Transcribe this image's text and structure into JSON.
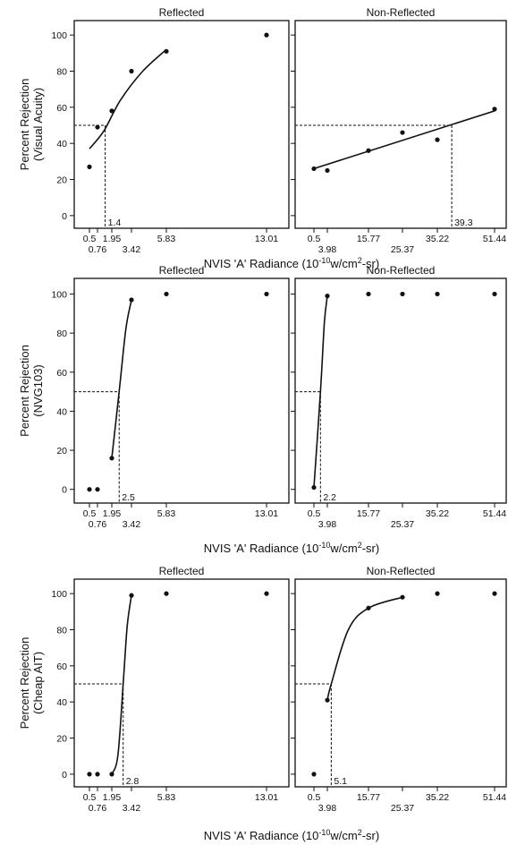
{
  "chart_data": [
    {
      "type": "scatter",
      "title": "Reflected",
      "ylabel": "Percent Rejection\n(Visual Acuity)",
      "xlabel": "NVIS 'A' Radiance (10-10w/cm2-sr)",
      "xticks": [
        {
          "label": "0.5",
          "x": 0.5
        },
        {
          "label": "0.76",
          "x": 0.76
        },
        {
          "label": "1.95",
          "x": 1.95
        },
        {
          "label": "3.42",
          "x": 3.42
        },
        {
          "label": "5.83",
          "x": 5.83
        },
        {
          "label": "13.01",
          "x": 13.01
        }
      ],
      "yticks": [
        0,
        20,
        40,
        60,
        80,
        100
      ],
      "ylim": [
        -7,
        108
      ],
      "points": [
        {
          "x": 0.5,
          "y": 27
        },
        {
          "x": 0.76,
          "y": 49
        },
        {
          "x": 1.95,
          "y": 58
        },
        {
          "x": 3.42,
          "y": 80
        },
        {
          "x": 5.83,
          "y": 91
        },
        {
          "x": 13.01,
          "y": 100
        }
      ],
      "curve": [
        [
          0.5,
          37
        ],
        [
          1.3,
          47
        ],
        [
          2.6,
          64
        ],
        [
          4.2,
          80
        ],
        [
          5.83,
          92
        ]
      ],
      "threshold": {
        "label": "1.4",
        "x": 1.4,
        "y": 50
      }
    },
    {
      "type": "scatter",
      "title": "Non-Reflected",
      "xticks": [
        {
          "label": "0.5",
          "x": 0.5
        },
        {
          "label": "3.98",
          "x": 3.98
        },
        {
          "label": "15.77",
          "x": 15.77
        },
        {
          "label": "25.37",
          "x": 25.37
        },
        {
          "label": "35.22",
          "x": 35.22
        },
        {
          "label": "51.44",
          "x": 51.44
        }
      ],
      "yticks": [
        0,
        20,
        40,
        60,
        80,
        100
      ],
      "ylim": [
        -7,
        108
      ],
      "points": [
        {
          "x": 0.5,
          "y": 26
        },
        {
          "x": 3.98,
          "y": 25
        },
        {
          "x": 15.77,
          "y": 36
        },
        {
          "x": 25.37,
          "y": 46
        },
        {
          "x": 35.22,
          "y": 42
        },
        {
          "x": 51.44,
          "y": 59
        }
      ],
      "curve": [
        [
          0.5,
          26
        ],
        [
          51.44,
          58
        ]
      ],
      "threshold": {
        "label": "39.3",
        "x": 39.3,
        "y": 50
      }
    },
    {
      "type": "scatter",
      "title": "Reflected",
      "ylabel": "Percent Rejection\n(NVG103)",
      "xlabel": "NVIS 'A' Radiance (10-10w/cm2-sr)",
      "xticks": [
        {
          "label": "0.5",
          "x": 0.5
        },
        {
          "label": "0.76",
          "x": 0.76
        },
        {
          "label": "1.95",
          "x": 1.95
        },
        {
          "label": "3.42",
          "x": 3.42
        },
        {
          "label": "5.83",
          "x": 5.83
        },
        {
          "label": "13.01",
          "x": 13.01
        }
      ],
      "yticks": [
        0,
        20,
        40,
        60,
        80,
        100
      ],
      "ylim": [
        -7,
        108
      ],
      "points": [
        {
          "x": 0.5,
          "y": 0
        },
        {
          "x": 0.76,
          "y": 0
        },
        {
          "x": 1.95,
          "y": 16
        },
        {
          "x": 3.42,
          "y": 97
        },
        {
          "x": 5.83,
          "y": 100
        },
        {
          "x": 13.01,
          "y": 100
        }
      ],
      "curve": [
        [
          1.95,
          16
        ],
        [
          2.5,
          50
        ],
        [
          3.0,
          82
        ],
        [
          3.42,
          97
        ]
      ],
      "threshold": {
        "label": "2.5",
        "x": 2.5,
        "y": 50
      }
    },
    {
      "type": "scatter",
      "title": "Non-Reflected",
      "xticks": [
        {
          "label": "0.5",
          "x": 0.5
        },
        {
          "label": "3.98",
          "x": 3.98
        },
        {
          "label": "15.77",
          "x": 15.77
        },
        {
          "label": "25.37",
          "x": 25.37
        },
        {
          "label": "35.22",
          "x": 35.22
        },
        {
          "label": "51.44",
          "x": 51.44
        }
      ],
      "yticks": [
        0,
        20,
        40,
        60,
        80,
        100
      ],
      "ylim": [
        -7,
        108
      ],
      "points": [
        {
          "x": 0.5,
          "y": 1
        },
        {
          "x": 3.98,
          "y": 99
        },
        {
          "x": 15.77,
          "y": 100
        },
        {
          "x": 25.37,
          "y": 100
        },
        {
          "x": 35.22,
          "y": 100
        },
        {
          "x": 51.44,
          "y": 100
        }
      ],
      "curve": [
        [
          0.5,
          1
        ],
        [
          2.2,
          50
        ],
        [
          3.2,
          85
        ],
        [
          3.98,
          99
        ]
      ],
      "threshold": {
        "label": "2.2",
        "x": 2.2,
        "y": 50
      }
    },
    {
      "type": "scatter",
      "title": "Reflected",
      "ylabel": "Percent Rejection\n(Cheap AIT)",
      "xlabel": "NVIS 'A' Radiance (10-10w/cm2-sr)",
      "xticks": [
        {
          "label": "0.5",
          "x": 0.5
        },
        {
          "label": "0.76",
          "x": 0.76
        },
        {
          "label": "1.95",
          "x": 1.95
        },
        {
          "label": "3.42",
          "x": 3.42
        },
        {
          "label": "5.83",
          "x": 5.83
        },
        {
          "label": "13.01",
          "x": 13.01
        }
      ],
      "yticks": [
        0,
        20,
        40,
        60,
        80,
        100
      ],
      "ylim": [
        -7,
        108
      ],
      "points": [
        {
          "x": 0.5,
          "y": 0
        },
        {
          "x": 0.76,
          "y": 0
        },
        {
          "x": 1.95,
          "y": 0
        },
        {
          "x": 3.42,
          "y": 99
        },
        {
          "x": 5.83,
          "y": 100
        },
        {
          "x": 13.01,
          "y": 100
        }
      ],
      "curve": [
        [
          1.95,
          0
        ],
        [
          2.4,
          10
        ],
        [
          2.8,
          50
        ],
        [
          3.1,
          82
        ],
        [
          3.42,
          99
        ]
      ],
      "threshold": {
        "label": "2.8",
        "x": 2.8,
        "y": 50
      }
    },
    {
      "type": "scatter",
      "title": "Non-Reflected",
      "xticks": [
        {
          "label": "0.5",
          "x": 0.5
        },
        {
          "label": "3.98",
          "x": 3.98
        },
        {
          "label": "15.77",
          "x": 15.77
        },
        {
          "label": "25.37",
          "x": 25.37
        },
        {
          "label": "35.22",
          "x": 35.22
        },
        {
          "label": "51.44",
          "x": 51.44
        }
      ],
      "yticks": [
        0,
        20,
        40,
        60,
        80,
        100
      ],
      "ylim": [
        -7,
        108
      ],
      "points": [
        {
          "x": 0.5,
          "y": 0
        },
        {
          "x": 3.98,
          "y": 41
        },
        {
          "x": 15.77,
          "y": 92
        },
        {
          "x": 25.37,
          "y": 98
        },
        {
          "x": 35.22,
          "y": 100
        },
        {
          "x": 51.44,
          "y": 100
        }
      ],
      "curve": [
        [
          3.98,
          41
        ],
        [
          5.1,
          50
        ],
        [
          10,
          80
        ],
        [
          15.77,
          92
        ],
        [
          25.37,
          98
        ]
      ],
      "threshold": {
        "label": "5.1",
        "x": 5.1,
        "y": 50
      }
    }
  ]
}
